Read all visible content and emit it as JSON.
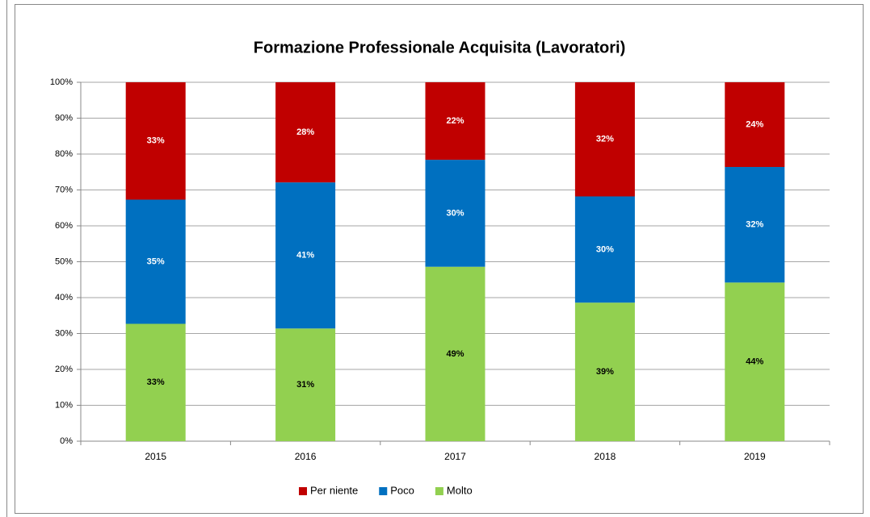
{
  "chart_data": {
    "type": "stacked_bar",
    "title": "Formazione Professionale Acquisita (Lavoratori)",
    "categories": [
      "2015",
      "2016",
      "2017",
      "2018",
      "2019"
    ],
    "series": [
      {
        "name": "Molto",
        "color": "#92d050",
        "label_color": "#000000",
        "values": [
          32.7,
          31.4,
          48.6,
          38.6,
          44.2
        ],
        "value_labels": [
          "33%",
          "31%",
          "49%",
          "39%",
          "44%"
        ]
      },
      {
        "name": "Poco",
        "color": "#0070c0",
        "label_color": "#ffffff",
        "values": [
          34.6,
          40.7,
          29.8,
          29.6,
          32.2
        ],
        "value_labels": [
          "35%",
          "41%",
          "30%",
          "30%",
          "32%"
        ]
      },
      {
        "name": "Per niente",
        "color": "#c00000",
        "label_color": "#ffffff",
        "values": [
          32.7,
          27.9,
          21.6,
          31.8,
          23.6
        ],
        "value_labels": [
          "33%",
          "28%",
          "22%",
          "32%",
          "24%"
        ]
      }
    ],
    "legend_order": [
      2,
      1,
      0
    ],
    "ylim": [
      0,
      100
    ],
    "yticks": [
      {
        "value": 0,
        "label": "0%"
      },
      {
        "value": 10,
        "label": "10%"
      },
      {
        "value": 20,
        "label": "20%"
      },
      {
        "value": 30,
        "label": "30%"
      },
      {
        "value": 40,
        "label": "40%"
      },
      {
        "value": 50,
        "label": "50%"
      },
      {
        "value": 60,
        "label": "60%"
      },
      {
        "value": 70,
        "label": "70%"
      },
      {
        "value": 80,
        "label": "80%"
      },
      {
        "value": 90,
        "label": "90%"
      },
      {
        "value": 100,
        "label": "100%"
      }
    ],
    "grid": true,
    "legend": "bottom"
  }
}
